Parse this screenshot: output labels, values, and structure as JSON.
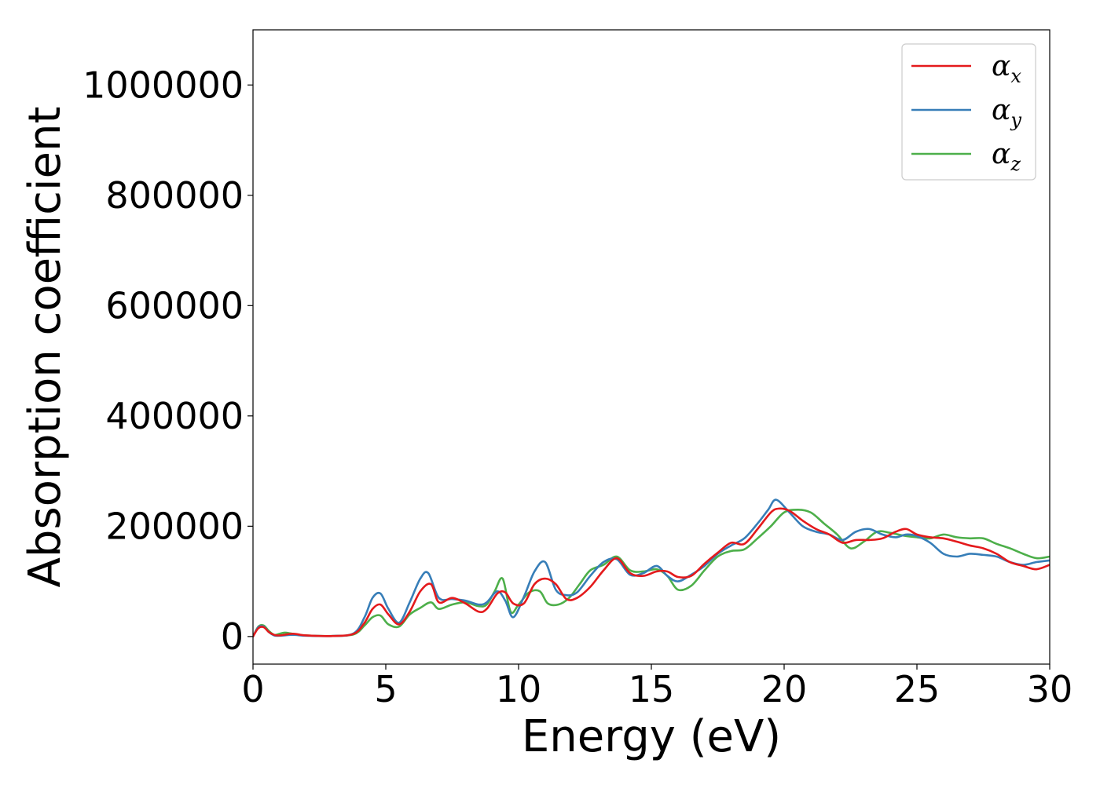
{
  "chart_data": {
    "type": "line",
    "title": "",
    "xlabel": "Energy (eV)",
    "ylabel": "Absorption coefficient",
    "xlim": [
      0,
      30
    ],
    "ylim": [
      -50000,
      1100000
    ],
    "xticks": [
      0,
      5,
      10,
      15,
      20,
      25,
      30
    ],
    "yticks": [
      0,
      200000,
      400000,
      600000,
      800000,
      1000000
    ],
    "grid": false,
    "legend_position": "top-right",
    "series": [
      {
        "name": "α_x",
        "label_main": "α",
        "label_sub": "x",
        "color": "#e41a1c",
        "x": [
          0,
          0.2,
          0.4,
          0.6,
          0.8,
          1.0,
          1.5,
          2.0,
          3.0,
          3.8,
          4.2,
          4.5,
          4.8,
          5.1,
          5.5,
          5.9,
          6.3,
          6.7,
          7.0,
          7.5,
          8.0,
          8.5,
          8.8,
          9.2,
          9.5,
          9.8,
          10.2,
          10.6,
          11.0,
          11.4,
          11.8,
          12.2,
          12.7,
          13.2,
          13.7,
          14.2,
          14.7,
          15.2,
          15.6,
          16.0,
          16.5,
          17.0,
          17.5,
          18.0,
          18.5,
          19.0,
          19.5,
          19.8,
          20.2,
          20.7,
          21.2,
          21.7,
          22.2,
          22.7,
          23.2,
          23.7,
          24.2,
          24.6,
          25.0,
          25.5,
          26.0,
          26.5,
          27.0,
          27.5,
          28.0,
          28.5,
          29.0,
          29.5,
          30.0
        ],
        "values": [
          0,
          15000,
          17000,
          8000,
          3000,
          2000,
          5000,
          2000,
          1000,
          5000,
          25000,
          50000,
          58000,
          40000,
          22000,
          45000,
          82000,
          95000,
          62000,
          70000,
          60000,
          45000,
          50000,
          78000,
          80000,
          60000,
          60000,
          95000,
          105000,
          95000,
          68000,
          70000,
          90000,
          120000,
          142000,
          115000,
          110000,
          118000,
          118000,
          108000,
          110000,
          132000,
          152000,
          170000,
          168000,
          195000,
          225000,
          232000,
          228000,
          210000,
          195000,
          185000,
          170000,
          175000,
          175000,
          178000,
          190000,
          195000,
          185000,
          180000,
          178000,
          172000,
          165000,
          160000,
          150000,
          135000,
          128000,
          122000,
          130000
        ]
      },
      {
        "name": "α_y",
        "label_main": "α",
        "label_sub": "y",
        "color": "#377eb8",
        "x": [
          0,
          0.2,
          0.4,
          0.6,
          0.8,
          1.0,
          1.5,
          2.0,
          3.0,
          3.8,
          4.2,
          4.5,
          4.8,
          5.1,
          5.5,
          5.9,
          6.3,
          6.6,
          7.0,
          7.5,
          8.0,
          8.5,
          8.8,
          9.2,
          9.5,
          9.8,
          10.2,
          10.6,
          11.0,
          11.4,
          11.8,
          12.2,
          12.7,
          13.2,
          13.7,
          14.2,
          14.7,
          15.2,
          15.6,
          16.0,
          16.5,
          17.0,
          17.5,
          18.0,
          18.5,
          19.0,
          19.4,
          19.7,
          20.2,
          20.7,
          21.2,
          21.7,
          22.2,
          22.7,
          23.2,
          23.7,
          24.2,
          24.6,
          25.0,
          25.5,
          26.0,
          26.5,
          27.0,
          27.5,
          28.0,
          28.5,
          29.0,
          29.5,
          30.0
        ],
        "values": [
          0,
          17000,
          18000,
          8000,
          2000,
          1500,
          3000,
          1500,
          1000,
          6000,
          35000,
          70000,
          78000,
          50000,
          25000,
          62000,
          105000,
          115000,
          70000,
          68000,
          65000,
          58000,
          62000,
          82000,
          65000,
          35000,
          72000,
          118000,
          135000,
          85000,
          75000,
          80000,
          110000,
          135000,
          140000,
          112000,
          115000,
          128000,
          110000,
          100000,
          112000,
          128000,
          150000,
          165000,
          178000,
          205000,
          230000,
          248000,
          225000,
          200000,
          190000,
          185000,
          175000,
          190000,
          195000,
          185000,
          180000,
          185000,
          182000,
          170000,
          150000,
          145000,
          150000,
          148000,
          145000,
          135000,
          130000,
          135000,
          138000
        ]
      },
      {
        "name": "α_z",
        "label_main": "α",
        "label_sub": "z",
        "color": "#4daf4a",
        "x": [
          0,
          0.2,
          0.4,
          0.6,
          0.8,
          1.0,
          1.2,
          1.5,
          2.0,
          3.0,
          3.8,
          4.2,
          4.5,
          4.8,
          5.1,
          5.5,
          5.9,
          6.3,
          6.7,
          7.0,
          7.5,
          8.0,
          8.5,
          8.8,
          9.1,
          9.4,
          9.7,
          10.0,
          10.4,
          10.8,
          11.1,
          11.5,
          11.9,
          12.3,
          12.7,
          13.2,
          13.7,
          14.2,
          14.7,
          15.2,
          15.6,
          16.0,
          16.5,
          17.0,
          17.5,
          18.0,
          18.5,
          19.0,
          19.5,
          20.0,
          20.5,
          21.0,
          21.5,
          22.0,
          22.5,
          23.0,
          23.5,
          24.0,
          24.5,
          25.0,
          25.5,
          26.0,
          26.5,
          27.0,
          27.5,
          28.0,
          28.5,
          29.0,
          29.5,
          30.0
        ],
        "values": [
          0,
          18000,
          20000,
          10000,
          3000,
          5000,
          7000,
          5000,
          2000,
          1000,
          4000,
          20000,
          35000,
          38000,
          22000,
          18000,
          40000,
          52000,
          62000,
          50000,
          58000,
          62000,
          55000,
          58000,
          82000,
          105000,
          45000,
          58000,
          80000,
          82000,
          60000,
          58000,
          70000,
          95000,
          120000,
          130000,
          145000,
          120000,
          118000,
          122000,
          110000,
          85000,
          92000,
          120000,
          145000,
          155000,
          158000,
          178000,
          200000,
          225000,
          230000,
          225000,
          205000,
          185000,
          160000,
          172000,
          190000,
          188000,
          183000,
          180000,
          178000,
          185000,
          180000,
          178000,
          178000,
          168000,
          160000,
          150000,
          142000,
          145000
        ]
      }
    ]
  }
}
